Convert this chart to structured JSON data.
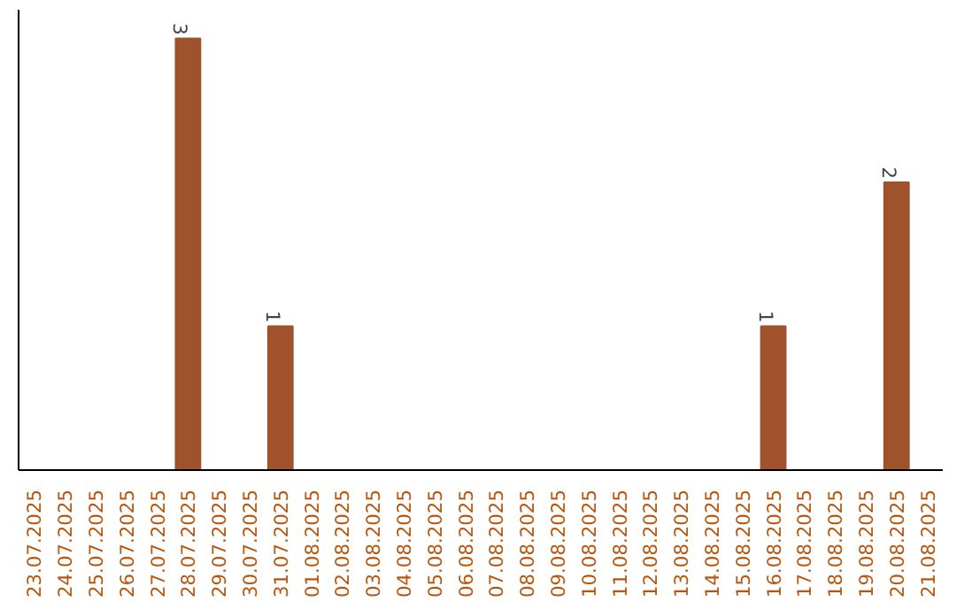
{
  "chart_data": {
    "type": "bar",
    "categories": [
      "23.07.2025",
      "24.07.2025",
      "25.07.2025",
      "26.07.2025",
      "27.07.2025",
      "28.07.2025",
      "29.07.2025",
      "30.07.2025",
      "31.07.2025",
      "01.08.2025",
      "02.08.2025",
      "03.08.2025",
      "04.08.2025",
      "05.08.2025",
      "06.08.2025",
      "07.08.2025",
      "08.08.2025",
      "09.08.2025",
      "10.08.2025",
      "11.08.2025",
      "12.08.2025",
      "13.08.2025",
      "14.08.2025",
      "15.08.2025",
      "16.08.2025",
      "17.08.2025",
      "18.08.2025",
      "19.08.2025",
      "20.08.2025",
      "21.08.2025"
    ],
    "values": [
      0,
      0,
      0,
      0,
      0,
      3,
      0,
      0,
      1,
      0,
      0,
      0,
      0,
      0,
      0,
      0,
      0,
      0,
      0,
      0,
      0,
      0,
      0,
      0,
      1,
      0,
      0,
      0,
      2,
      0
    ],
    "value_labels": [
      null,
      null,
      null,
      null,
      null,
      "3",
      null,
      null,
      "1",
      null,
      null,
      null,
      null,
      null,
      null,
      null,
      null,
      null,
      null,
      null,
      null,
      null,
      null,
      null,
      "1",
      null,
      null,
      null,
      "2",
      null
    ],
    "color": "#a0522d",
    "ylim": [
      0,
      3.2
    ],
    "tick_labels": "x"
  }
}
